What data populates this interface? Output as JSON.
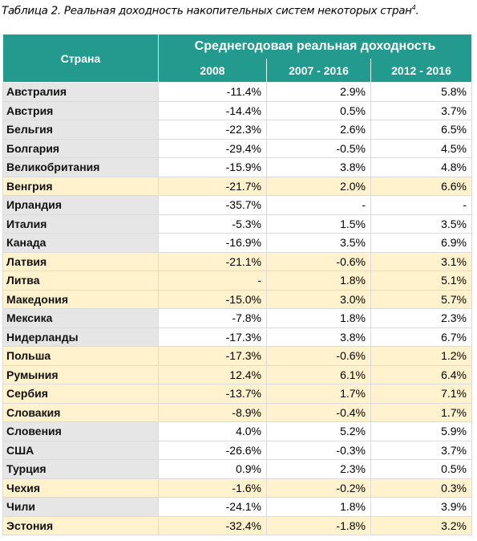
{
  "caption": {
    "text": "Таблица 2. Реальная доходность накопительных систем некоторых стран",
    "note": "4",
    "end": "."
  },
  "table": {
    "header": {
      "country": "Страна",
      "group": "Среднегодовая реальная доходность",
      "columns": [
        "2008",
        "2007 - 2016",
        "2012 - 2016"
      ]
    },
    "rows": [
      {
        "country": "Австралия",
        "values": [
          "-11.4%",
          "2.9%",
          "5.8%"
        ]
      },
      {
        "country": "Австрия",
        "values": [
          "-14.4%",
          "0.5%",
          "3.7%"
        ]
      },
      {
        "country": "Бельгия",
        "values": [
          "-22.3%",
          "2.6%",
          "6.5%"
        ]
      },
      {
        "country": "Болгария",
        "values": [
          "-29.4%",
          "-0.5%",
          "4.5%"
        ]
      },
      {
        "country": "Великобритания",
        "values": [
          "-15.9%",
          "3.8%",
          "4.8%"
        ]
      },
      {
        "country": "Венгрия",
        "values": [
          "-21.7%",
          "2.0%",
          "6.6%"
        ],
        "highlight": true
      },
      {
        "country": "Ирландия",
        "values": [
          "-35.7%",
          "-",
          "-"
        ]
      },
      {
        "country": "Италия",
        "values": [
          "-5.3%",
          "1.5%",
          "3.5%"
        ]
      },
      {
        "country": "Канада",
        "values": [
          "-16.9%",
          "3.5%",
          "6.9%"
        ]
      },
      {
        "country": "Латвия",
        "values": [
          "-21.1%",
          "-0.6%",
          "3.1%"
        ],
        "highlight": true
      },
      {
        "country": "Литва",
        "values": [
          "-",
          "1.8%",
          "5.1%"
        ],
        "highlight": true
      },
      {
        "country": "Македония",
        "values": [
          "-15.0%",
          "3.0%",
          "5.7%"
        ],
        "highlight": true
      },
      {
        "country": "Мексика",
        "values": [
          "-7.8%",
          "1.8%",
          "2.3%"
        ]
      },
      {
        "country": "Нидерланды",
        "values": [
          "-17.3%",
          "3.8%",
          "6.7%"
        ]
      },
      {
        "country": "Польша",
        "values": [
          "-17.3%",
          "-0.6%",
          "1.2%"
        ],
        "highlight": true
      },
      {
        "country": "Румыния",
        "values": [
          "12.4%",
          "6.1%",
          "6.4%"
        ],
        "highlight": true
      },
      {
        "country": "Сербия",
        "values": [
          "-13.7%",
          "1.7%",
          "7.1%"
        ],
        "highlight": true
      },
      {
        "country": "Словакия",
        "values": [
          "-8.9%",
          "-0.4%",
          "1.7%"
        ],
        "highlight": true
      },
      {
        "country": "Словения",
        "values": [
          "4.0%",
          "5.2%",
          "5.9%"
        ]
      },
      {
        "country": "США",
        "values": [
          "-26.6%",
          "-0.3%",
          "3.7%"
        ]
      },
      {
        "country": "Турция",
        "values": [
          "0.9%",
          "2.3%",
          "0.5%"
        ]
      },
      {
        "country": "Чехия",
        "values": [
          "-1.6%",
          "-0.2%",
          "0.3%"
        ],
        "highlight": true
      },
      {
        "country": "Чили",
        "values": [
          "-24.1%",
          "1.8%",
          "3.9%"
        ]
      },
      {
        "country": "Эстония",
        "values": [
          "-32.4%",
          "-1.8%",
          "3.2%"
        ],
        "highlight": true
      }
    ]
  }
}
